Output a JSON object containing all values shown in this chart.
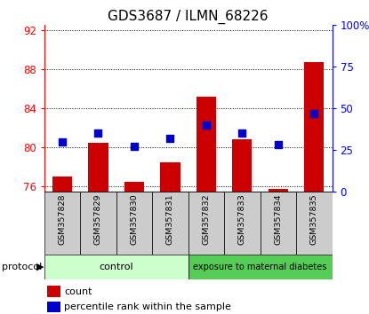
{
  "title": "GDS3687 / ILMN_68226",
  "samples": [
    "GSM357828",
    "GSM357829",
    "GSM357830",
    "GSM357831",
    "GSM357832",
    "GSM357833",
    "GSM357834",
    "GSM357835"
  ],
  "bar_values": [
    77.0,
    80.5,
    76.5,
    78.5,
    85.2,
    80.8,
    75.8,
    88.7
  ],
  "percentile_values": [
    30,
    35,
    27,
    32,
    40,
    35,
    28,
    47
  ],
  "ylim_left": [
    75.5,
    92.5
  ],
  "ylim_right": [
    0,
    100
  ],
  "yticks_left": [
    76,
    80,
    84,
    88,
    92
  ],
  "yticks_right": [
    0,
    25,
    50,
    75,
    100
  ],
  "ytick_labels_right": [
    "0",
    "25",
    "50",
    "75",
    "100%"
  ],
  "bar_color": "#cc0000",
  "dot_color": "#0000cc",
  "bar_bottom": 75.5,
  "control_label": "control",
  "treatment_label": "exposure to maternal diabetes",
  "control_color": "#ccffcc",
  "treatment_color": "#55cc55",
  "protocol_label": "protocol",
  "legend_count": "count",
  "legend_percentile": "percentile rank within the sample",
  "n_control": 4,
  "n_treatment": 4,
  "label_bg_color": "#cccccc",
  "title_fontsize": 11
}
